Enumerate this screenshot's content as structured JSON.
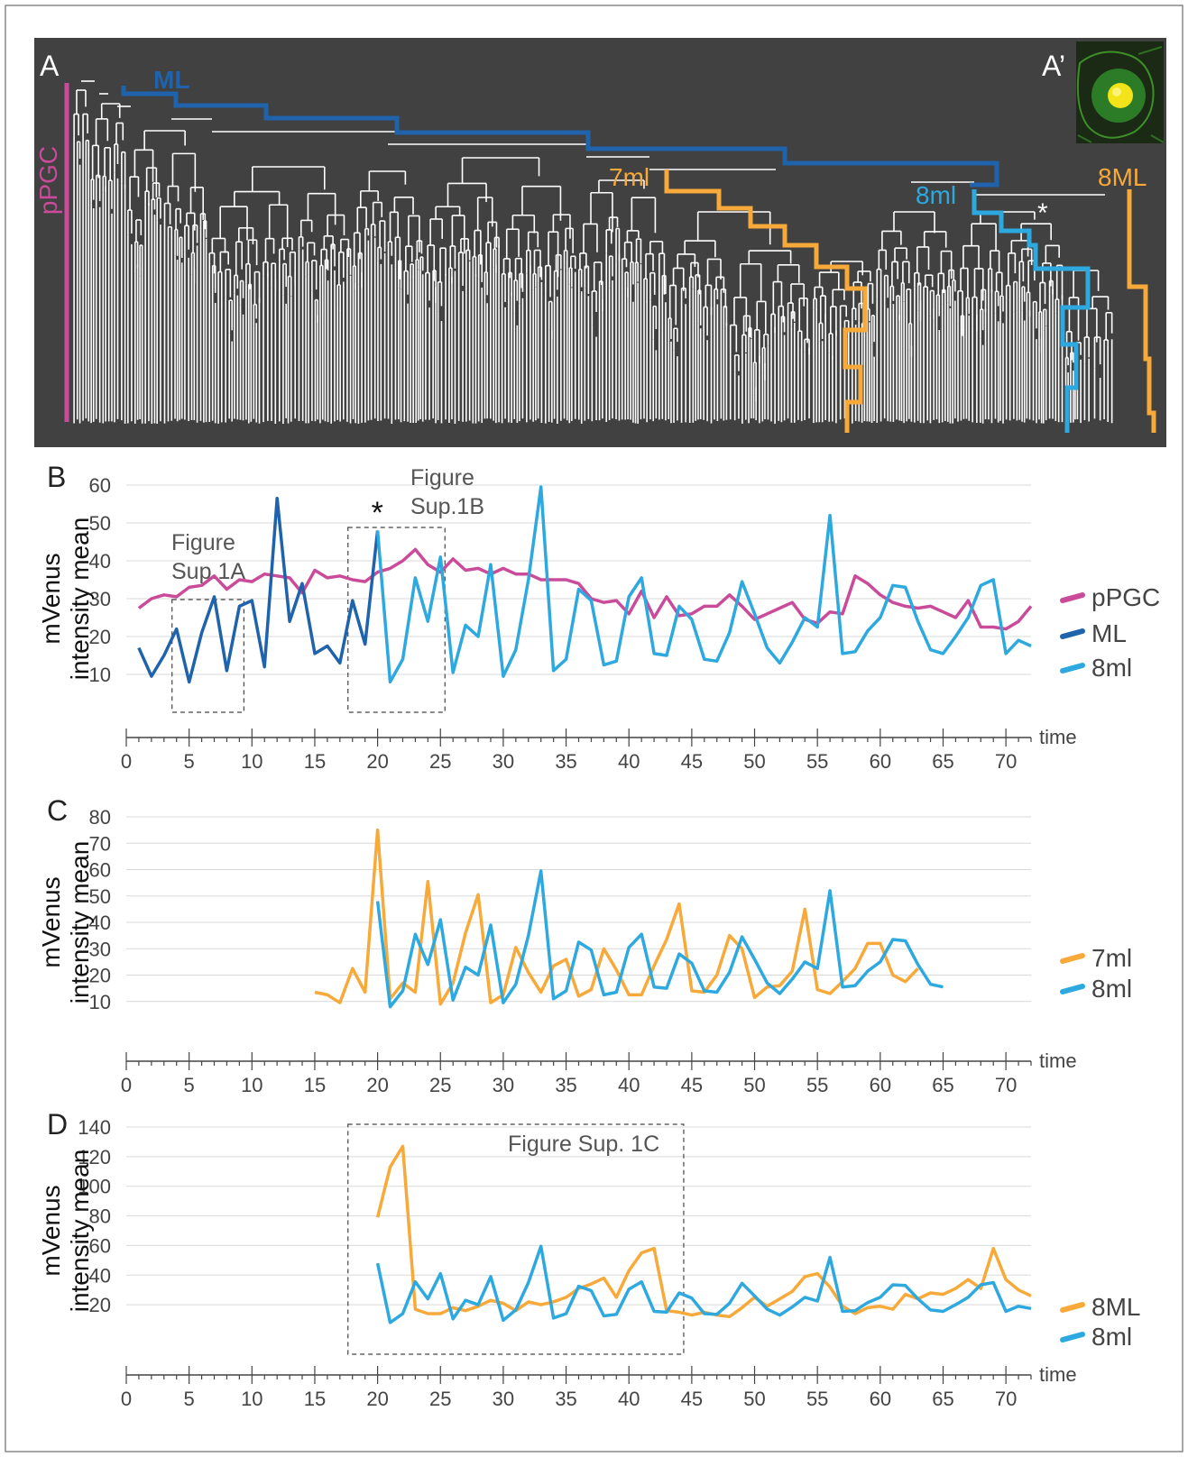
{
  "colors": {
    "pink": "#c94b99",
    "darkblue": "#1f63ad",
    "lightblue": "#2ea9e0",
    "orange": "#f7a93a",
    "panel_bg": "#414141",
    "text": "#333333",
    "axis": "#444444"
  },
  "panel_a": {
    "label": "A",
    "inset_label": "A’",
    "lineage_labels": {
      "pPGC": "pPGC",
      "ML": "ML",
      "7ml": "7ml",
      "8ml": "8ml",
      "8ML": "8ML",
      "asterisk": "*"
    }
  },
  "chart_data": [
    {
      "panel": "B",
      "type": "line",
      "ylabel": "mVenus\nintensity mean",
      "xlabel": "time",
      "ylim": [
        0,
        60
      ],
      "yticks": [
        10,
        20,
        30,
        40,
        50,
        60
      ],
      "xlim": [
        0,
        72
      ],
      "xticks": [
        0,
        5,
        10,
        15,
        20,
        25,
        30,
        35,
        40,
        45,
        50,
        55,
        60,
        65,
        70
      ],
      "grid": true,
      "legend": "right",
      "annotations": [
        {
          "text": "Figure\nSup.1A",
          "range": [
            4,
            9
          ]
        },
        {
          "text": "Figure\nSup.1B",
          "range": [
            18,
            25
          ]
        },
        {
          "text": "*",
          "x": 20
        }
      ],
      "series": [
        {
          "name": "pPGC",
          "color": "#c94b99",
          "x_start": 1,
          "values": [
            27.5,
            30,
            31,
            30.5,
            33,
            33.5,
            36,
            32.5,
            35,
            34.5,
            36.5,
            36,
            35.5,
            31.5,
            37.5,
            35.5,
            36,
            35,
            34.5,
            37,
            38,
            40,
            43,
            39,
            37,
            40.5,
            37.5,
            38,
            36.5,
            38,
            36.5,
            36.5,
            35,
            35,
            35,
            34,
            30,
            29,
            29.5,
            26,
            32,
            25,
            30.5,
            25.5,
            26,
            28,
            28,
            31,
            28,
            24.5,
            26,
            27.5,
            29,
            24.5,
            23.5,
            26.5,
            26,
            36,
            34,
            31,
            29,
            28,
            27.5,
            28,
            26.5,
            25,
            29.5,
            22.5,
            22.5,
            22,
            24,
            28
          ]
        },
        {
          "name": "ML",
          "color": "#1f63ad",
          "x_start": 1,
          "values": [
            17,
            9.5,
            15,
            22,
            8,
            21,
            30.5,
            11,
            28,
            29.5,
            12,
            56.5,
            24,
            34,
            15.5,
            17.5,
            13,
            29.5,
            18,
            48
          ]
        },
        {
          "name": "8ml",
          "color": "#2ea9e0",
          "x_start": 20,
          "values": [
            48,
            8,
            14,
            35.5,
            24,
            41,
            10.5,
            23,
            20,
            39,
            9.5,
            16.5,
            35,
            59.5,
            11,
            14,
            32.5,
            29.5,
            12.5,
            13.5,
            30.5,
            35.5,
            15.5,
            15,
            28,
            24.5,
            14,
            13.5,
            21,
            34.5,
            26,
            17,
            13,
            18.5,
            25,
            22.5,
            52,
            15.5,
            16,
            21.5,
            25,
            33.5,
            33,
            24,
            16.5,
            15.5,
            20,
            25,
            33.5,
            35,
            15.5,
            19,
            17.5
          ]
        }
      ]
    },
    {
      "panel": "C",
      "type": "line",
      "ylabel": "mVenus\nintensity mean",
      "xlabel": "time",
      "ylim": [
        0,
        80
      ],
      "yticks": [
        10,
        20,
        30,
        40,
        50,
        60,
        70,
        80
      ],
      "xlim": [
        0,
        72
      ],
      "xticks": [
        0,
        5,
        10,
        15,
        20,
        25,
        30,
        35,
        40,
        45,
        50,
        55,
        60,
        65,
        70
      ],
      "grid": true,
      "legend": "right",
      "series": [
        {
          "name": "7ml",
          "color": "#f7a93a",
          "x_start": 15,
          "values": [
            13.5,
            12.5,
            9.5,
            22.5,
            13.5,
            75,
            11,
            17,
            13.5,
            55.5,
            9,
            17,
            36,
            50.5,
            9.5,
            12.5,
            30.5,
            21,
            13.5,
            23.5,
            26,
            12,
            14.5,
            30,
            22,
            12.5,
            12.5,
            23.5,
            33.5,
            47,
            14,
            13.5,
            20,
            35,
            30,
            11.5,
            15.5,
            16,
            21.5,
            45,
            14.5,
            13,
            17.5,
            22.5,
            32,
            32,
            20,
            17.5,
            22.5
          ]
        },
        {
          "name": "8ml",
          "color": "#2ea9e0",
          "x_start": 20,
          "values": [
            48,
            8,
            14,
            35.5,
            24,
            41,
            10.5,
            23,
            20,
            39,
            9.5,
            16.5,
            35,
            59.5,
            11,
            14,
            32.5,
            29.5,
            12.5,
            13.5,
            30.5,
            35.5,
            15.5,
            15,
            28,
            24.5,
            14,
            13.5,
            21,
            34.5,
            26,
            17,
            13,
            18.5,
            25,
            22.5,
            52,
            15.5,
            16,
            21.5,
            25,
            33.5,
            33,
            24,
            16.5,
            15.5
          ]
        }
      ]
    },
    {
      "panel": "D",
      "type": "line",
      "ylabel": "mVenus\nintensity mean",
      "xlabel": "time",
      "ylim": [
        0,
        140
      ],
      "yticks": [
        20,
        40,
        60,
        80,
        100,
        120,
        140
      ],
      "xlim": [
        0,
        72
      ],
      "xticks": [
        0,
        5,
        10,
        15,
        20,
        25,
        30,
        35,
        40,
        45,
        50,
        55,
        60,
        65,
        70
      ],
      "grid": true,
      "legend": "right",
      "annotations": [
        {
          "text": "Figure Sup. 1C",
          "range": [
            18,
            44
          ]
        }
      ],
      "series": [
        {
          "name": "8ML",
          "color": "#f7a93a",
          "x_start": 20,
          "values": [
            79,
            113,
            127,
            17,
            14,
            14,
            18,
            16,
            19,
            23,
            21,
            16,
            22,
            20,
            22,
            25,
            31,
            34,
            38,
            25,
            43,
            55,
            58,
            16,
            15,
            13,
            15,
            13,
            12,
            18,
            25,
            19,
            24,
            29,
            39,
            41,
            32,
            19,
            14,
            18,
            19,
            17,
            27,
            24,
            28,
            27,
            31,
            37,
            31,
            58,
            37,
            30,
            26
          ]
        },
        {
          "name": "8ml",
          "color": "#2ea9e0",
          "x_start": 20,
          "values": [
            48,
            8,
            14,
            35.5,
            24,
            41,
            10.5,
            23,
            20,
            39,
            9.5,
            16.5,
            35,
            59.5,
            11,
            14,
            32.5,
            29.5,
            12.5,
            13.5,
            30.5,
            35.5,
            15.5,
            15,
            28,
            24.5,
            14,
            13.5,
            21,
            34.5,
            26,
            17,
            13,
            18.5,
            25,
            22.5,
            52,
            15.5,
            16,
            21.5,
            25,
            33.5,
            33,
            24,
            16.5,
            15.5,
            20,
            25,
            33.5,
            35,
            15.5,
            19,
            17.5
          ]
        }
      ]
    }
  ]
}
